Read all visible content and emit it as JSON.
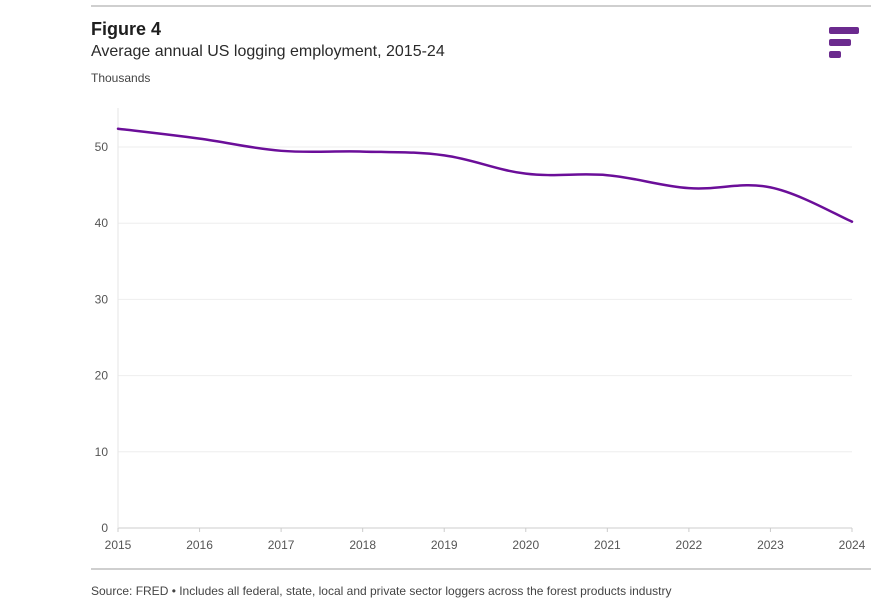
{
  "header": {
    "figure_label": "Figure 4",
    "title": "Average annual US logging employment, 2015-24",
    "unit": "Thousands"
  },
  "footer": {
    "source": "Source: FRED • Includes all federal, state, local and private sector loggers across the forest products industry"
  },
  "logo": {
    "icon": "brand-logo-icon",
    "color": "#6b2a8e"
  },
  "chart_data": {
    "type": "line",
    "title": "Average annual US logging employment, 2015-24",
    "ylabel": "Thousands",
    "xlabel": "",
    "x": [
      2015,
      2016,
      2017,
      2018,
      2019,
      2020,
      2021,
      2022,
      2023,
      2024
    ],
    "series": [
      {
        "values": [
          52.4,
          51.1,
          49.5,
          49.4,
          48.9,
          46.5,
          46.3,
          44.6,
          44.7,
          40.2
        ],
        "color": "#6b0e99"
      }
    ],
    "xlim": [
      2015,
      2024
    ],
    "ylim": [
      0,
      55
    ],
    "yticks": [
      0,
      10,
      20,
      30,
      40,
      50
    ],
    "xticks": [
      "2015",
      "2016",
      "2017",
      "2018",
      "2019",
      "2020",
      "2021",
      "2022",
      "2023",
      "2024"
    ],
    "grid": true,
    "legend": "none"
  }
}
